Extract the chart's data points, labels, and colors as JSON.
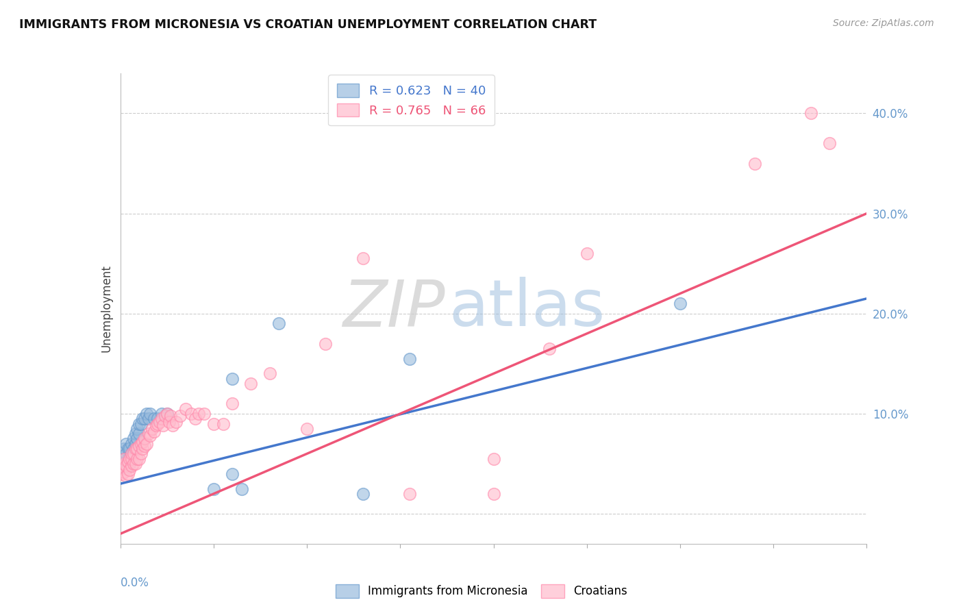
{
  "title": "IMMIGRANTS FROM MICRONESIA VS CROATIAN UNEMPLOYMENT CORRELATION CHART",
  "source": "Source: ZipAtlas.com",
  "ylabel": "Unemployment",
  "xlim": [
    0.0,
    0.4
  ],
  "ylim": [
    -0.03,
    0.44
  ],
  "yticks": [
    0.0,
    0.1,
    0.2,
    0.3,
    0.4
  ],
  "ytick_labels": [
    "",
    "10.0%",
    "20.0%",
    "30.0%",
    "40.0%"
  ],
  "blue_R": 0.623,
  "blue_N": 40,
  "pink_R": 0.765,
  "pink_N": 66,
  "blue_color": "#99BBDD",
  "blue_edge": "#6699CC",
  "pink_color": "#FFBBCC",
  "pink_edge": "#FF88AA",
  "blue_line_color": "#4477CC",
  "pink_line_color": "#EE5577",
  "blue_label": "Immigrants from Micronesia",
  "pink_label": "Croatians",
  "axis_color": "#6699CC",
  "blue_line_x0": 0.0,
  "blue_line_y0": 0.03,
  "blue_line_x1": 0.4,
  "blue_line_y1": 0.215,
  "pink_line_x0": 0.0,
  "pink_line_y0": -0.02,
  "pink_line_x1": 0.4,
  "pink_line_y1": 0.3,
  "blue_scatter_x": [
    0.001,
    0.001,
    0.002,
    0.002,
    0.003,
    0.003,
    0.003,
    0.004,
    0.004,
    0.005,
    0.005,
    0.005,
    0.006,
    0.006,
    0.007,
    0.007,
    0.008,
    0.008,
    0.009,
    0.009,
    0.01,
    0.01,
    0.011,
    0.012,
    0.013,
    0.014,
    0.015,
    0.016,
    0.018,
    0.02,
    0.022,
    0.025,
    0.05,
    0.06,
    0.065,
    0.085,
    0.13,
    0.155,
    0.06,
    0.3
  ],
  "blue_scatter_y": [
    0.05,
    0.055,
    0.05,
    0.065,
    0.045,
    0.06,
    0.07,
    0.055,
    0.065,
    0.05,
    0.055,
    0.065,
    0.06,
    0.07,
    0.065,
    0.075,
    0.07,
    0.08,
    0.075,
    0.085,
    0.08,
    0.09,
    0.09,
    0.095,
    0.095,
    0.1,
    0.095,
    0.1,
    0.095,
    0.095,
    0.1,
    0.1,
    0.025,
    0.04,
    0.025,
    0.19,
    0.02,
    0.155,
    0.135,
    0.21
  ],
  "pink_scatter_x": [
    0.001,
    0.001,
    0.002,
    0.002,
    0.002,
    0.003,
    0.003,
    0.004,
    0.004,
    0.005,
    0.005,
    0.006,
    0.006,
    0.006,
    0.007,
    0.007,
    0.008,
    0.008,
    0.009,
    0.009,
    0.01,
    0.01,
    0.011,
    0.011,
    0.012,
    0.012,
    0.013,
    0.013,
    0.014,
    0.015,
    0.016,
    0.017,
    0.018,
    0.019,
    0.02,
    0.021,
    0.022,
    0.023,
    0.024,
    0.025,
    0.026,
    0.027,
    0.028,
    0.03,
    0.032,
    0.035,
    0.038,
    0.04,
    0.042,
    0.045,
    0.05,
    0.055,
    0.06,
    0.07,
    0.08,
    0.1,
    0.11,
    0.13,
    0.155,
    0.2,
    0.2,
    0.23,
    0.25,
    0.34,
    0.37,
    0.38
  ],
  "pink_scatter_y": [
    0.04,
    0.048,
    0.042,
    0.05,
    0.055,
    0.038,
    0.048,
    0.04,
    0.052,
    0.044,
    0.055,
    0.048,
    0.055,
    0.06,
    0.05,
    0.06,
    0.05,
    0.065,
    0.055,
    0.065,
    0.055,
    0.068,
    0.06,
    0.07,
    0.065,
    0.072,
    0.068,
    0.075,
    0.07,
    0.08,
    0.078,
    0.085,
    0.082,
    0.088,
    0.09,
    0.092,
    0.095,
    0.088,
    0.098,
    0.1,
    0.092,
    0.098,
    0.088,
    0.092,
    0.098,
    0.105,
    0.1,
    0.095,
    0.1,
    0.1,
    0.09,
    0.09,
    0.11,
    0.13,
    0.14,
    0.085,
    0.17,
    0.255,
    0.02,
    0.055,
    0.02,
    0.165,
    0.26,
    0.35,
    0.4,
    0.37
  ]
}
